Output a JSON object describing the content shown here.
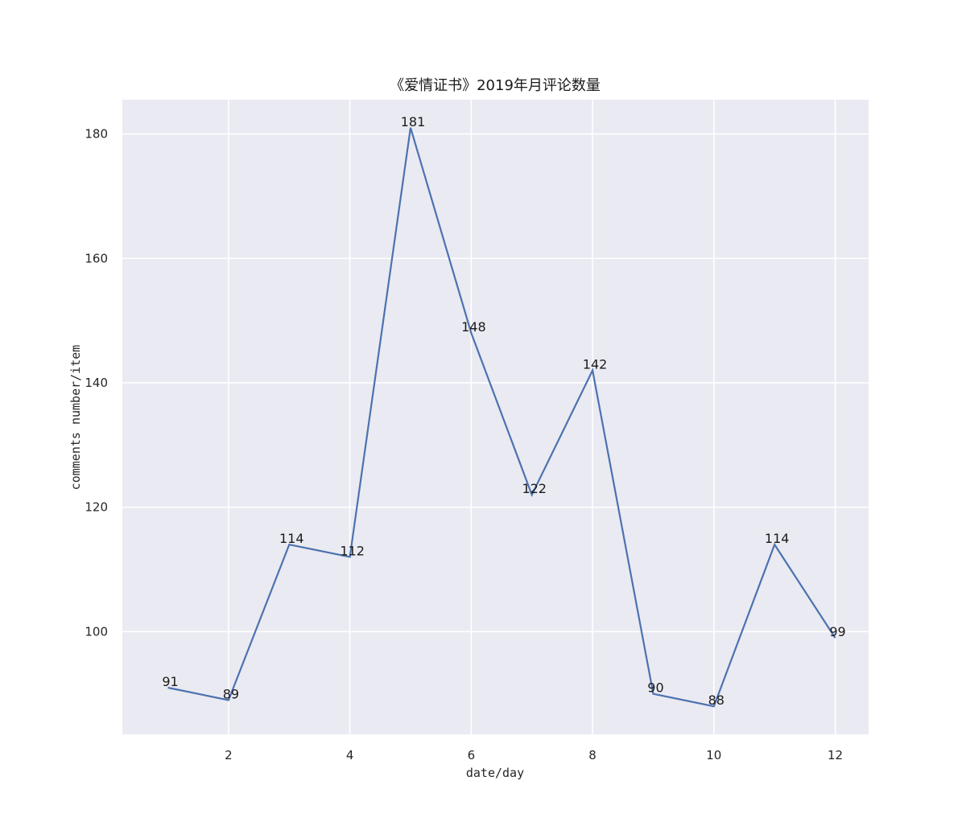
{
  "chart_data": {
    "type": "line",
    "title": "《爱情证书》2019年月评论数量",
    "xlabel": "date/day",
    "ylabel": "comments number/item",
    "x": [
      1,
      2,
      3,
      4,
      5,
      6,
      7,
      8,
      9,
      10,
      11,
      12
    ],
    "series": [
      {
        "values": [
          91,
          89,
          114,
          112,
          181,
          148,
          122,
          142,
          90,
          88,
          114,
          99
        ]
      }
    ],
    "xticks": [
      2,
      4,
      6,
      8,
      10,
      12
    ],
    "yticks": [
      100,
      120,
      140,
      160,
      180
    ],
    "xlim": [
      0.25,
      12.55
    ],
    "ylim": [
      83.5,
      185.5
    ],
    "grid": true,
    "colors": {
      "line": "#4c72b0",
      "background": "#eaeaf2",
      "grid": "#ffffff"
    }
  }
}
